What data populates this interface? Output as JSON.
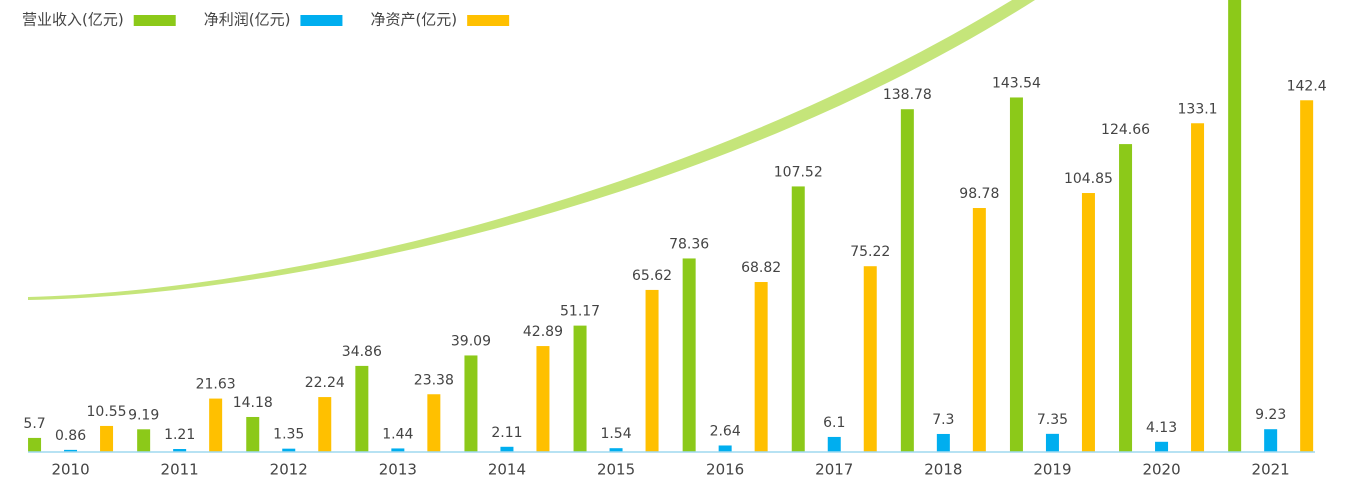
{
  "chart_data": {
    "type": "bar",
    "categories": [
      "2010",
      "2011",
      "2012",
      "2013",
      "2014",
      "2015",
      "2016",
      "2017",
      "2018",
      "2019",
      "2020",
      "2021"
    ],
    "series": [
      {
        "name": "营业收入(亿元)",
        "color": "#8cc919",
        "values": [
          5.7,
          9.19,
          14.18,
          34.86,
          39.09,
          51.17,
          78.36,
          107.52,
          138.78,
          143.54,
          124.66,
          190
        ]
      },
      {
        "name": "净利润(亿元)",
        "color": "#00aeef",
        "values": [
          0.86,
          1.21,
          1.35,
          1.44,
          2.11,
          1.54,
          2.64,
          6.1,
          7.3,
          7.35,
          4.13,
          9.23
        ]
      },
      {
        "name": "净资产(亿元)",
        "color": "#ffc000",
        "values": [
          10.55,
          21.63,
          22.24,
          23.38,
          42.89,
          65.62,
          68.82,
          75.22,
          98.78,
          104.85,
          133.1,
          142.4
        ]
      }
    ],
    "ylim": [
      0,
      183
    ]
  }
}
